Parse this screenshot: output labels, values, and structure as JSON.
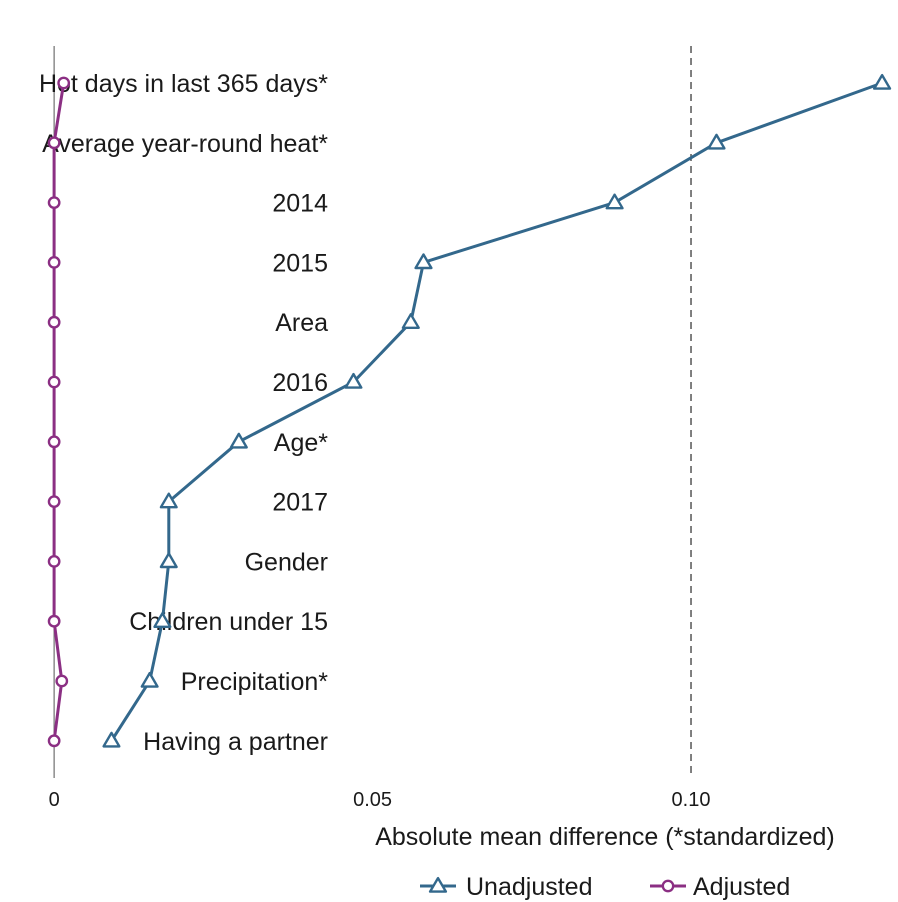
{
  "chart_data": {
    "type": "dot",
    "categories": [
      "Hot days in last 365 days*",
      "Average year-round heat*",
      "2014",
      "2015",
      "Area",
      "2016",
      "Age*",
      "2017",
      "Gender",
      "Children under 15",
      "Precipitation*",
      "Having a partner"
    ],
    "series": [
      {
        "name": "Unadjusted",
        "color": "#33688c",
        "marker": "triangle",
        "values": [
          0.13,
          0.104,
          0.088,
          0.058,
          0.056,
          0.047,
          0.029,
          0.018,
          0.018,
          0.017,
          0.015,
          0.009
        ]
      },
      {
        "name": "Adjusted",
        "color": "#8b2f83",
        "marker": "circle",
        "values": [
          0.0015,
          0.0,
          0.0,
          0.0,
          0.0,
          0.0,
          0.0,
          0.0,
          0.0,
          0.0,
          0.0012,
          0.0
        ]
      }
    ],
    "xlabel": "Absolute mean difference (*standardized)",
    "xticks": [
      0,
      0.05,
      0.1
    ],
    "xtick_labels": [
      "0",
      "0.05",
      "0.10"
    ],
    "xlim": [
      -0.0085,
      0.1325
    ],
    "reference_line": 0.1,
    "legend": "bottom"
  }
}
